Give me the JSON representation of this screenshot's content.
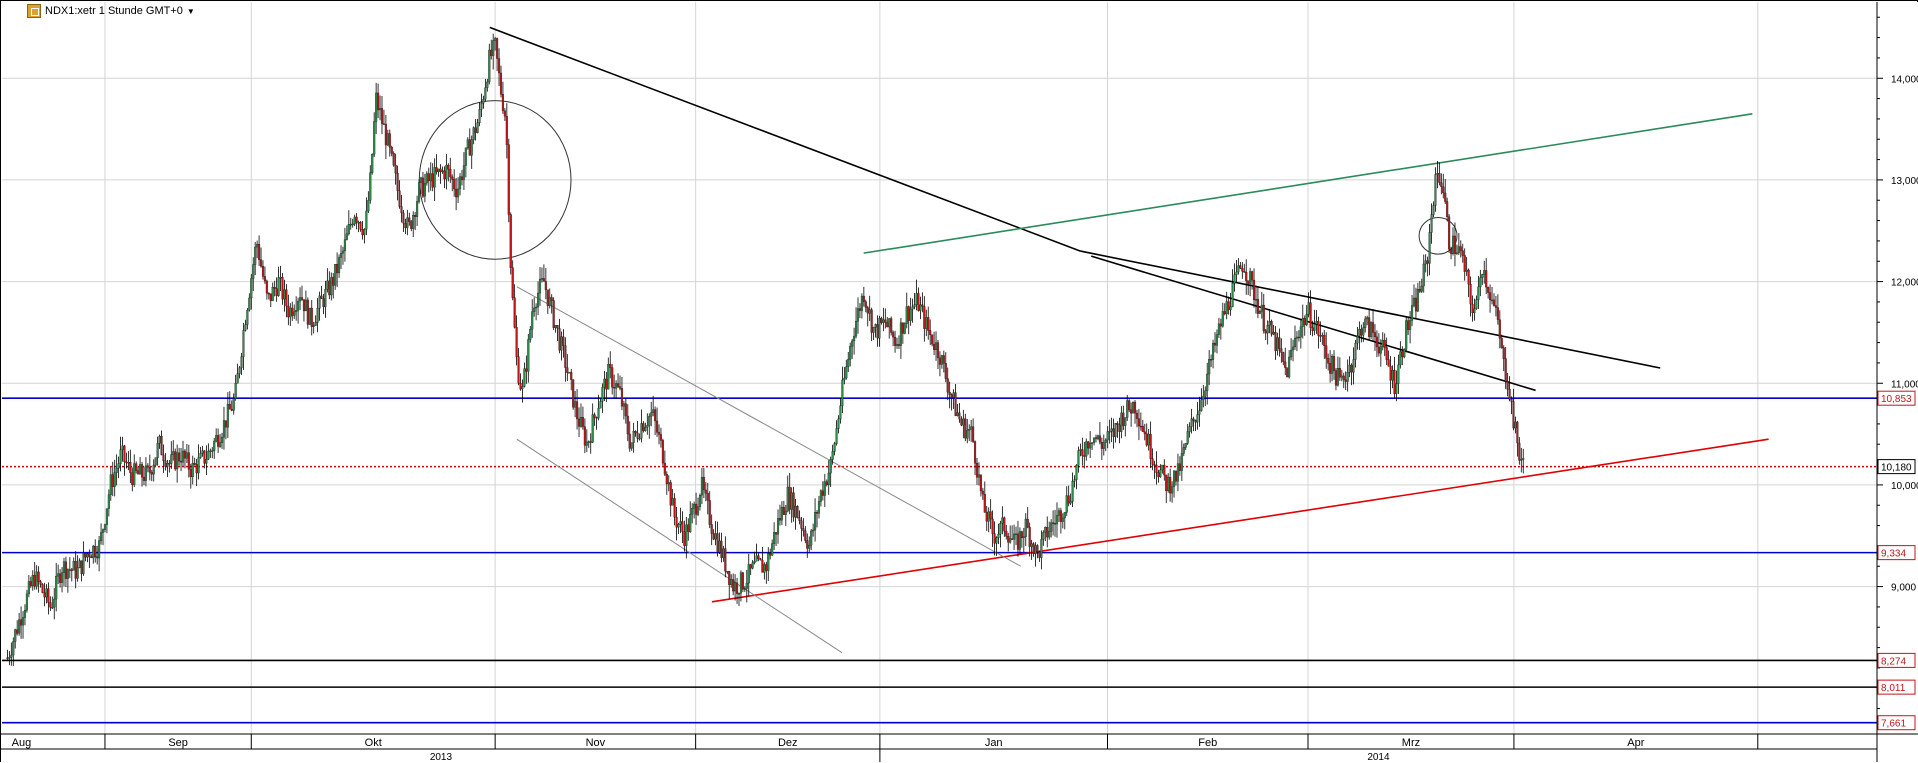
{
  "title": "NDX1:xetr 1 Stunde GMT+0",
  "icons": {
    "chart": "chart-icon",
    "dropdown": "chevron-down-icon"
  },
  "colors": {
    "up": "#2d8a4a",
    "down": "#c0161b",
    "wick": "#000000",
    "support_blue": "#0000c8",
    "support_black": "#000000",
    "dotted_red": "#d40000",
    "trend_green": "#2a8a5a",
    "trend_red": "#e00000",
    "trend_black": "#000000",
    "grid": "#d4d4d4"
  },
  "chart_data": {
    "type": "candlestick",
    "series": [
      {
        "name": "NDX1:xetr"
      }
    ],
    "ylim": [
      7.55,
      14.75
    ],
    "yticks": [
      {
        "label": "14,000",
        "value": 14.0
      },
      {
        "label": "13,000",
        "value": 13.0
      },
      {
        "label": "12,000",
        "value": 12.0
      },
      {
        "label": "11,000",
        "value": 11.0
      },
      {
        "label": "10,000",
        "value": 10.0
      },
      {
        "label": "9,000",
        "value": 9.0
      }
    ],
    "months": [
      "Aug",
      "Sep",
      "Okt",
      "Nov",
      "Dez",
      "Jan",
      "Feb",
      "Mrz",
      "Apr"
    ],
    "years": [
      "2013",
      "2014"
    ],
    "horizontal_levels": [
      {
        "label": "10,853",
        "value": 10.853,
        "style": "solid",
        "color": "#0000c8",
        "badge": "#c0161b"
      },
      {
        "label": "10,180",
        "value": 10.18,
        "style": "dotted",
        "color": "#d40000",
        "badge": "#000000"
      },
      {
        "label": "9,334",
        "value": 9.334,
        "style": "solid",
        "color": "#0000c8",
        "badge": "#c0161b"
      },
      {
        "label": "8,274",
        "value": 8.274,
        "style": "solid",
        "color": "#000000",
        "badge": "#c0161b"
      },
      {
        "label": "8,011",
        "value": 8.011,
        "style": "solid",
        "color": "#000000",
        "badge": "#c0161b"
      },
      {
        "label": "7,661",
        "value": 7.661,
        "style": "solid",
        "color": "#0000c8",
        "badge": "#c0161b"
      }
    ],
    "path": [
      [
        1,
        8.3
      ],
      [
        4,
        8.8
      ],
      [
        6,
        9.1
      ],
      [
        9,
        8.8
      ],
      [
        11,
        9.2
      ],
      [
        14,
        9.15
      ],
      [
        16,
        9.35
      ],
      [
        18,
        9.4
      ],
      [
        20,
        10.0
      ],
      [
        22,
        10.3
      ],
      [
        24,
        10.1
      ],
      [
        27,
        10.1
      ],
      [
        29,
        10.4
      ],
      [
        31,
        10.2
      ],
      [
        33,
        10.3
      ],
      [
        35,
        10.15
      ],
      [
        38,
        10.3
      ],
      [
        41,
        10.6
      ],
      [
        43,
        10.85
      ],
      [
        45,
        11.7
      ],
      [
        47,
        12.4
      ],
      [
        49,
        11.8
      ],
      [
        51,
        12.0
      ],
      [
        53,
        11.7
      ],
      [
        55,
        11.9
      ],
      [
        57,
        11.6
      ],
      [
        59,
        11.8
      ],
      [
        61,
        12.0
      ],
      [
        63,
        12.3
      ],
      [
        65,
        12.7
      ],
      [
        67,
        12.5
      ],
      [
        68,
        13.0
      ],
      [
        69,
        13.8
      ],
      [
        71,
        13.4
      ],
      [
        73,
        12.9
      ],
      [
        75,
        12.5
      ],
      [
        77,
        12.9
      ],
      [
        79,
        13.0
      ],
      [
        82,
        13.1
      ],
      [
        84,
        12.9
      ],
      [
        86,
        13.3
      ],
      [
        88,
        13.6
      ],
      [
        90,
        14.2
      ],
      [
        91,
        14.3
      ],
      [
        92,
        13.9
      ],
      [
        93,
        13.6
      ],
      [
        94,
        12.0
      ],
      [
        95,
        11.2
      ],
      [
        96,
        10.9
      ],
      [
        97,
        11.3
      ],
      [
        98,
        11.8
      ],
      [
        100,
        12.0
      ],
      [
        102,
        11.6
      ],
      [
        104,
        11.2
      ],
      [
        106,
        10.7
      ],
      [
        108,
        10.4
      ],
      [
        110,
        10.8
      ],
      [
        112,
        11.1
      ],
      [
        114,
        10.9
      ],
      [
        116,
        10.4
      ],
      [
        118,
        10.6
      ],
      [
        120,
        10.7
      ],
      [
        122,
        10.3
      ],
      [
        124,
        9.7
      ],
      [
        126,
        9.5
      ],
      [
        128,
        9.8
      ],
      [
        129,
        10.0
      ],
      [
        131,
        9.6
      ],
      [
        133,
        9.3
      ],
      [
        135,
        9.0
      ],
      [
        137,
        9.05
      ],
      [
        139,
        9.2
      ],
      [
        141,
        9.2
      ],
      [
        143,
        9.6
      ],
      [
        145,
        9.9
      ],
      [
        147,
        9.7
      ],
      [
        149,
        9.4
      ],
      [
        151,
        9.9
      ],
      [
        153,
        10.2
      ],
      [
        155,
        10.9
      ],
      [
        157,
        11.5
      ],
      [
        159,
        11.9
      ],
      [
        161,
        11.5
      ],
      [
        163,
        11.6
      ],
      [
        165,
        11.4
      ],
      [
        167,
        11.7
      ],
      [
        169,
        11.8
      ],
      [
        171,
        11.5
      ],
      [
        173,
        11.3
      ],
      [
        175,
        10.9
      ],
      [
        177,
        10.6
      ],
      [
        179,
        10.5
      ],
      [
        181,
        9.8
      ],
      [
        183,
        9.5
      ],
      [
        185,
        9.6
      ],
      [
        187,
        9.4
      ],
      [
        189,
        9.6
      ],
      [
        191,
        9.3
      ],
      [
        193,
        9.55
      ],
      [
        195,
        9.7
      ],
      [
        197,
        9.9
      ],
      [
        199,
        10.3
      ],
      [
        201,
        10.5
      ],
      [
        203,
        10.4
      ],
      [
        205,
        10.5
      ],
      [
        207,
        10.7
      ],
      [
        209,
        10.8
      ],
      [
        211,
        10.5
      ],
      [
        213,
        10.2
      ],
      [
        215,
        10.0
      ],
      [
        217,
        10.1
      ],
      [
        219,
        10.5
      ],
      [
        221,
        10.8
      ],
      [
        223,
        11.2
      ],
      [
        225,
        11.6
      ],
      [
        227,
        11.9
      ],
      [
        229,
        12.2
      ],
      [
        231,
        11.9
      ],
      [
        233,
        11.6
      ],
      [
        235,
        11.4
      ],
      [
        237,
        11.1
      ],
      [
        239,
        11.5
      ],
      [
        241,
        11.7
      ],
      [
        243,
        11.5
      ],
      [
        245,
        11.2
      ],
      [
        247,
        11.0
      ],
      [
        249,
        11.2
      ],
      [
        251,
        11.6
      ],
      [
        253,
        11.5
      ],
      [
        255,
        11.3
      ],
      [
        257,
        11.0
      ],
      [
        259,
        11.5
      ],
      [
        261,
        11.8
      ],
      [
        263,
        12.2
      ],
      [
        264,
        12.8
      ],
      [
        265,
        13.1
      ],
      [
        266,
        12.9
      ],
      [
        267,
        12.4
      ],
      [
        269,
        12.3
      ],
      [
        270,
        12.1
      ],
      [
        271,
        11.8
      ],
      [
        272,
        11.7
      ],
      [
        273,
        12.2
      ],
      [
        275,
        11.8
      ],
      [
        276,
        11.6
      ],
      [
        277,
        11.2
      ],
      [
        278,
        11.0
      ],
      [
        279,
        10.6
      ],
      [
        280,
        10.3
      ],
      [
        281,
        10.15
      ]
    ],
    "annotations": {
      "lines": [
        {
          "name": "long-black-trendline",
          "color": "#000000",
          "from": [
            90,
            14.5
          ],
          "to": [
            199,
            12.3
          ]
        },
        {
          "name": "black-trendline-upper",
          "color": "#000000",
          "from": [
            199,
            12.3
          ],
          "to": [
            306,
            11.15
          ]
        },
        {
          "name": "black-trendline-lower",
          "color": "#000000",
          "from": [
            201,
            12.25
          ],
          "to": [
            283,
            10.93
          ]
        },
        {
          "name": "green-trendline",
          "color": "#2a8a5a",
          "from": [
            159,
            12.28
          ],
          "to": [
            323,
            13.65
          ]
        },
        {
          "name": "red-support-trendline",
          "color": "#e00000",
          "from": [
            131,
            8.85
          ],
          "to": [
            326,
            10.45
          ]
        },
        {
          "name": "gray-channel-upper",
          "color": "#888888",
          "from": [
            95,
            11.95
          ],
          "to": [
            188,
            9.2
          ]
        },
        {
          "name": "gray-channel-lower",
          "color": "#888888",
          "from": [
            95,
            10.45
          ],
          "to": [
            155,
            8.35
          ]
        }
      ],
      "circles": [
        {
          "name": "big-ellipse",
          "center": [
            91,
            13.0
          ],
          "radius": [
            14,
            0.78
          ]
        },
        {
          "name": "small-ellipse",
          "center": [
            265,
            12.45
          ],
          "radius": [
            3.5,
            0.18
          ]
        }
      ]
    }
  }
}
